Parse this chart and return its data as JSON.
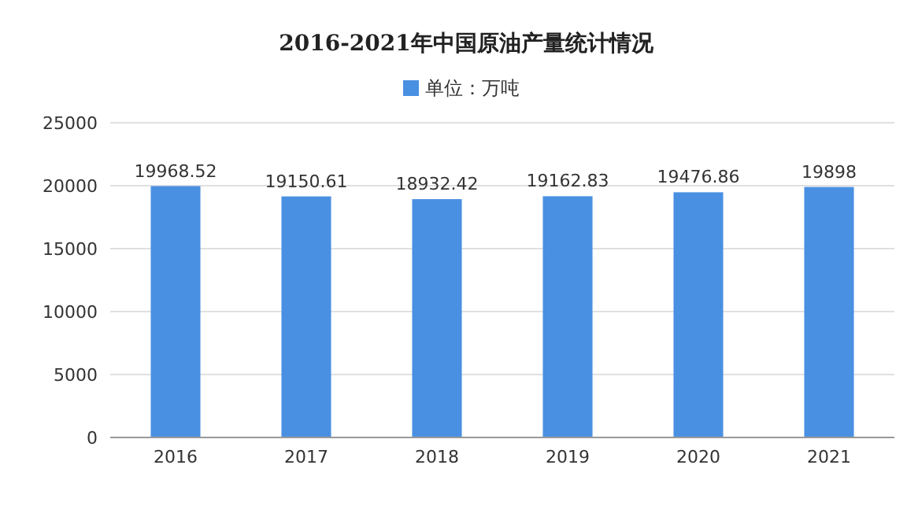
{
  "chart_data": {
    "type": "bar",
    "title": "2016-2021年中国原油产量统计情况",
    "categories": [
      "2016",
      "2017",
      "2018",
      "2019",
      "2020",
      "2021"
    ],
    "series": [
      {
        "name": "单位：万吨",
        "color": "#4a90e2",
        "values": [
          19968.52,
          19150.61,
          18932.42,
          19162.83,
          19476.86,
          19898
        ]
      }
    ],
    "ylim": [
      0,
      25000
    ],
    "yticks": [
      0,
      5000,
      10000,
      15000,
      20000,
      25000
    ],
    "grid": "y",
    "legend": "top",
    "data_labels": true
  }
}
